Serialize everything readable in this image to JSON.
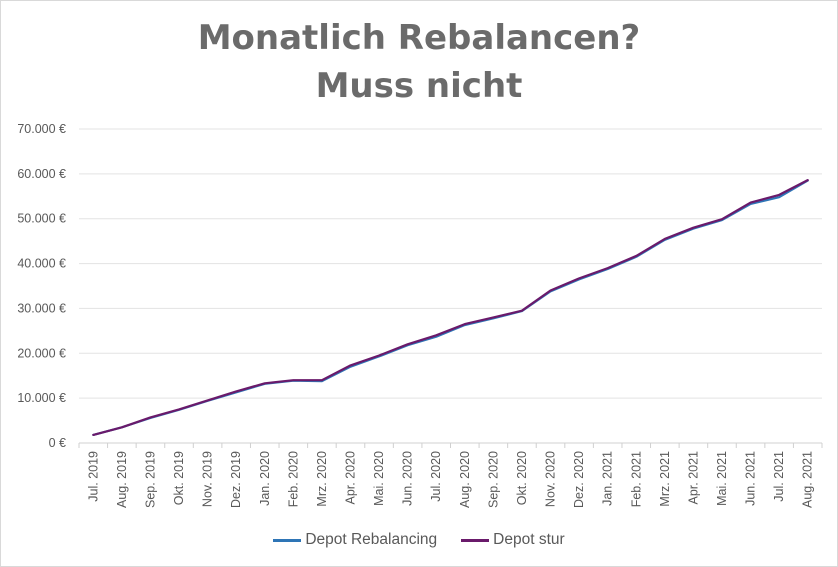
{
  "chart_data": {
    "type": "line",
    "title_lines": [
      "Monatlich Rebalancen?",
      "Muss nicht"
    ],
    "xlabel": "",
    "ylabel": "",
    "y_tick_labels": [
      "0 €",
      "10.000 €",
      "20.000 €",
      "30.000 €",
      "40.000 €",
      "50.000 €",
      "60.000 €",
      "70.000 €"
    ],
    "y_tick_values": [
      0,
      10000,
      20000,
      30000,
      40000,
      50000,
      60000,
      70000
    ],
    "ylim": [
      0,
      70000
    ],
    "grid": true,
    "legend_position": "bottom",
    "categories": [
      "Jul. 2019",
      "Aug. 2019",
      "Sep. 2019",
      "Okt. 2019",
      "Nov. 2019",
      "Dez. 2019",
      "Jan. 2020",
      "Feb. 2020",
      "Mrz. 2020",
      "Apr. 2020",
      "Mai. 2020",
      "Jun. 2020",
      "Jul. 2020",
      "Aug. 2020",
      "Sep. 2020",
      "Okt. 2020",
      "Nov. 2020",
      "Dez. 2020",
      "Jan. 2021",
      "Feb. 2021",
      "Mrz. 2021",
      "Apr. 2021",
      "Mai. 2021",
      "Jun. 2021",
      "Jul. 2021",
      "Aug. 2021"
    ],
    "series": [
      {
        "name": "Depot Rebalancing",
        "color": "#2e75b6",
        "values": [
          1800,
          3500,
          5600,
          7400,
          9400,
          11300,
          13200,
          13900,
          13800,
          17000,
          19300,
          21800,
          23700,
          26300,
          27800,
          29400,
          33800,
          36500,
          38800,
          41500,
          45300,
          47800,
          49700,
          53300,
          54800,
          58500
        ]
      },
      {
        "name": "Depot stur",
        "color": "#6a1a6b",
        "values": [
          1800,
          3500,
          5700,
          7500,
          9500,
          11500,
          13300,
          14000,
          14000,
          17300,
          19500,
          22000,
          24000,
          26500,
          28000,
          29500,
          34000,
          36700,
          39000,
          41700,
          45500,
          48000,
          49900,
          53600,
          55300,
          58600
        ]
      }
    ]
  }
}
